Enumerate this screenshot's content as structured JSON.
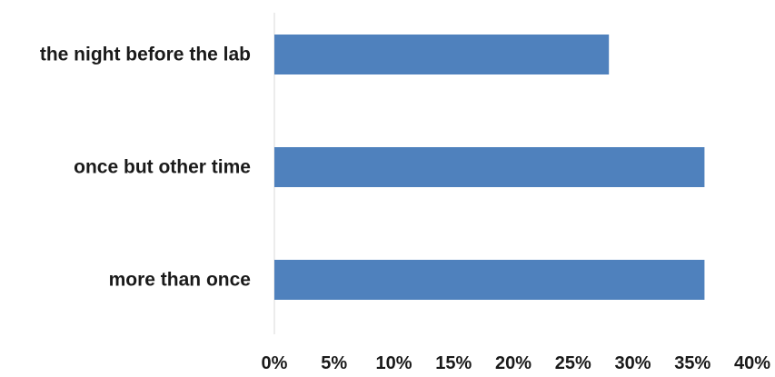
{
  "chart_data": {
    "type": "bar",
    "orientation": "horizontal",
    "categories": [
      "the night before the lab",
      "once but other time",
      "more than once"
    ],
    "values": [
      28,
      36,
      36
    ],
    "value_unit": "%",
    "xlim": [
      0,
      40
    ],
    "x_ticks": [
      0,
      5,
      10,
      15,
      20,
      25,
      30,
      35,
      40
    ],
    "x_tick_labels": [
      "0%",
      "5%",
      "10%",
      "15%",
      "20%",
      "25%",
      "30%",
      "35%",
      "40%"
    ],
    "title": "",
    "xlabel": "",
    "ylabel": "",
    "grid": false,
    "legend": "none",
    "bar_color": "#4f81bd",
    "axis_color": "#d9d9d9"
  }
}
